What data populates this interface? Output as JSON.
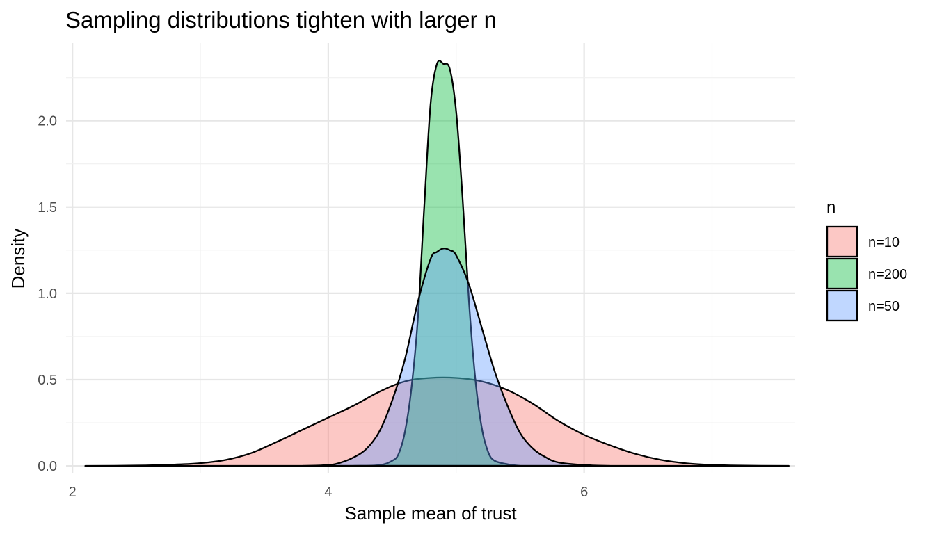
{
  "chart_data": {
    "type": "area",
    "title": "Sampling distributions tighten with larger n",
    "xlabel": "Sample mean of trust",
    "ylabel": "Density",
    "xlim": [
      1.95,
      7.65
    ],
    "ylim": [
      -0.04,
      2.45
    ],
    "x_ticks": [
      2,
      4,
      6
    ],
    "x_tick_labels": [
      "2",
      "4",
      "6"
    ],
    "y_ticks": [
      0.0,
      0.5,
      1.0,
      1.5,
      2.0
    ],
    "y_tick_labels": [
      "0.0",
      "0.5",
      "1.0",
      "1.5",
      "2.0"
    ],
    "grid": true,
    "legend": {
      "title": "n",
      "position": "right"
    },
    "series": [
      {
        "name": "n=10",
        "color": "#F8766D",
        "points": [
          [
            2.1,
            0.0
          ],
          [
            2.5,
            0.002
          ],
          [
            2.8,
            0.008
          ],
          [
            3.0,
            0.016
          ],
          [
            3.2,
            0.035
          ],
          [
            3.4,
            0.075
          ],
          [
            3.6,
            0.14
          ],
          [
            3.8,
            0.21
          ],
          [
            4.0,
            0.28
          ],
          [
            4.2,
            0.35
          ],
          [
            4.4,
            0.43
          ],
          [
            4.6,
            0.49
          ],
          [
            4.8,
            0.51
          ],
          [
            5.0,
            0.51
          ],
          [
            5.2,
            0.49
          ],
          [
            5.4,
            0.44
          ],
          [
            5.6,
            0.36
          ],
          [
            5.8,
            0.26
          ],
          [
            6.0,
            0.18
          ],
          [
            6.2,
            0.12
          ],
          [
            6.4,
            0.07
          ],
          [
            6.6,
            0.035
          ],
          [
            6.8,
            0.015
          ],
          [
            7.0,
            0.006
          ],
          [
            7.2,
            0.002
          ],
          [
            7.6,
            0.0
          ]
        ]
      },
      {
        "name": "n=200",
        "color": "#00BA38",
        "points": [
          [
            4.2,
            0.0
          ],
          [
            4.4,
            0.005
          ],
          [
            4.5,
            0.03
          ],
          [
            4.55,
            0.07
          ],
          [
            4.6,
            0.2
          ],
          [
            4.65,
            0.45
          ],
          [
            4.7,
            0.85
          ],
          [
            4.75,
            1.5
          ],
          [
            4.8,
            2.1
          ],
          [
            4.85,
            2.33
          ],
          [
            4.9,
            2.33
          ],
          [
            4.95,
            2.3
          ],
          [
            5.0,
            2.05
          ],
          [
            5.05,
            1.55
          ],
          [
            5.1,
            0.95
          ],
          [
            5.15,
            0.5
          ],
          [
            5.2,
            0.22
          ],
          [
            5.25,
            0.08
          ],
          [
            5.3,
            0.03
          ],
          [
            5.4,
            0.01
          ],
          [
            5.5,
            0.0
          ]
        ]
      },
      {
        "name": "n=50",
        "color": "#619CFF",
        "points": [
          [
            3.8,
            0.0
          ],
          [
            4.0,
            0.005
          ],
          [
            4.1,
            0.02
          ],
          [
            4.2,
            0.05
          ],
          [
            4.3,
            0.1
          ],
          [
            4.4,
            0.2
          ],
          [
            4.5,
            0.38
          ],
          [
            4.6,
            0.62
          ],
          [
            4.7,
            0.95
          ],
          [
            4.8,
            1.2
          ],
          [
            4.85,
            1.24
          ],
          [
            4.9,
            1.26
          ],
          [
            4.95,
            1.25
          ],
          [
            5.0,
            1.22
          ],
          [
            5.1,
            1.05
          ],
          [
            5.2,
            0.8
          ],
          [
            5.3,
            0.55
          ],
          [
            5.4,
            0.35
          ],
          [
            5.5,
            0.19
          ],
          [
            5.6,
            0.1
          ],
          [
            5.7,
            0.05
          ],
          [
            5.8,
            0.02
          ],
          [
            6.0,
            0.005
          ],
          [
            6.2,
            0.0
          ]
        ]
      }
    ]
  }
}
